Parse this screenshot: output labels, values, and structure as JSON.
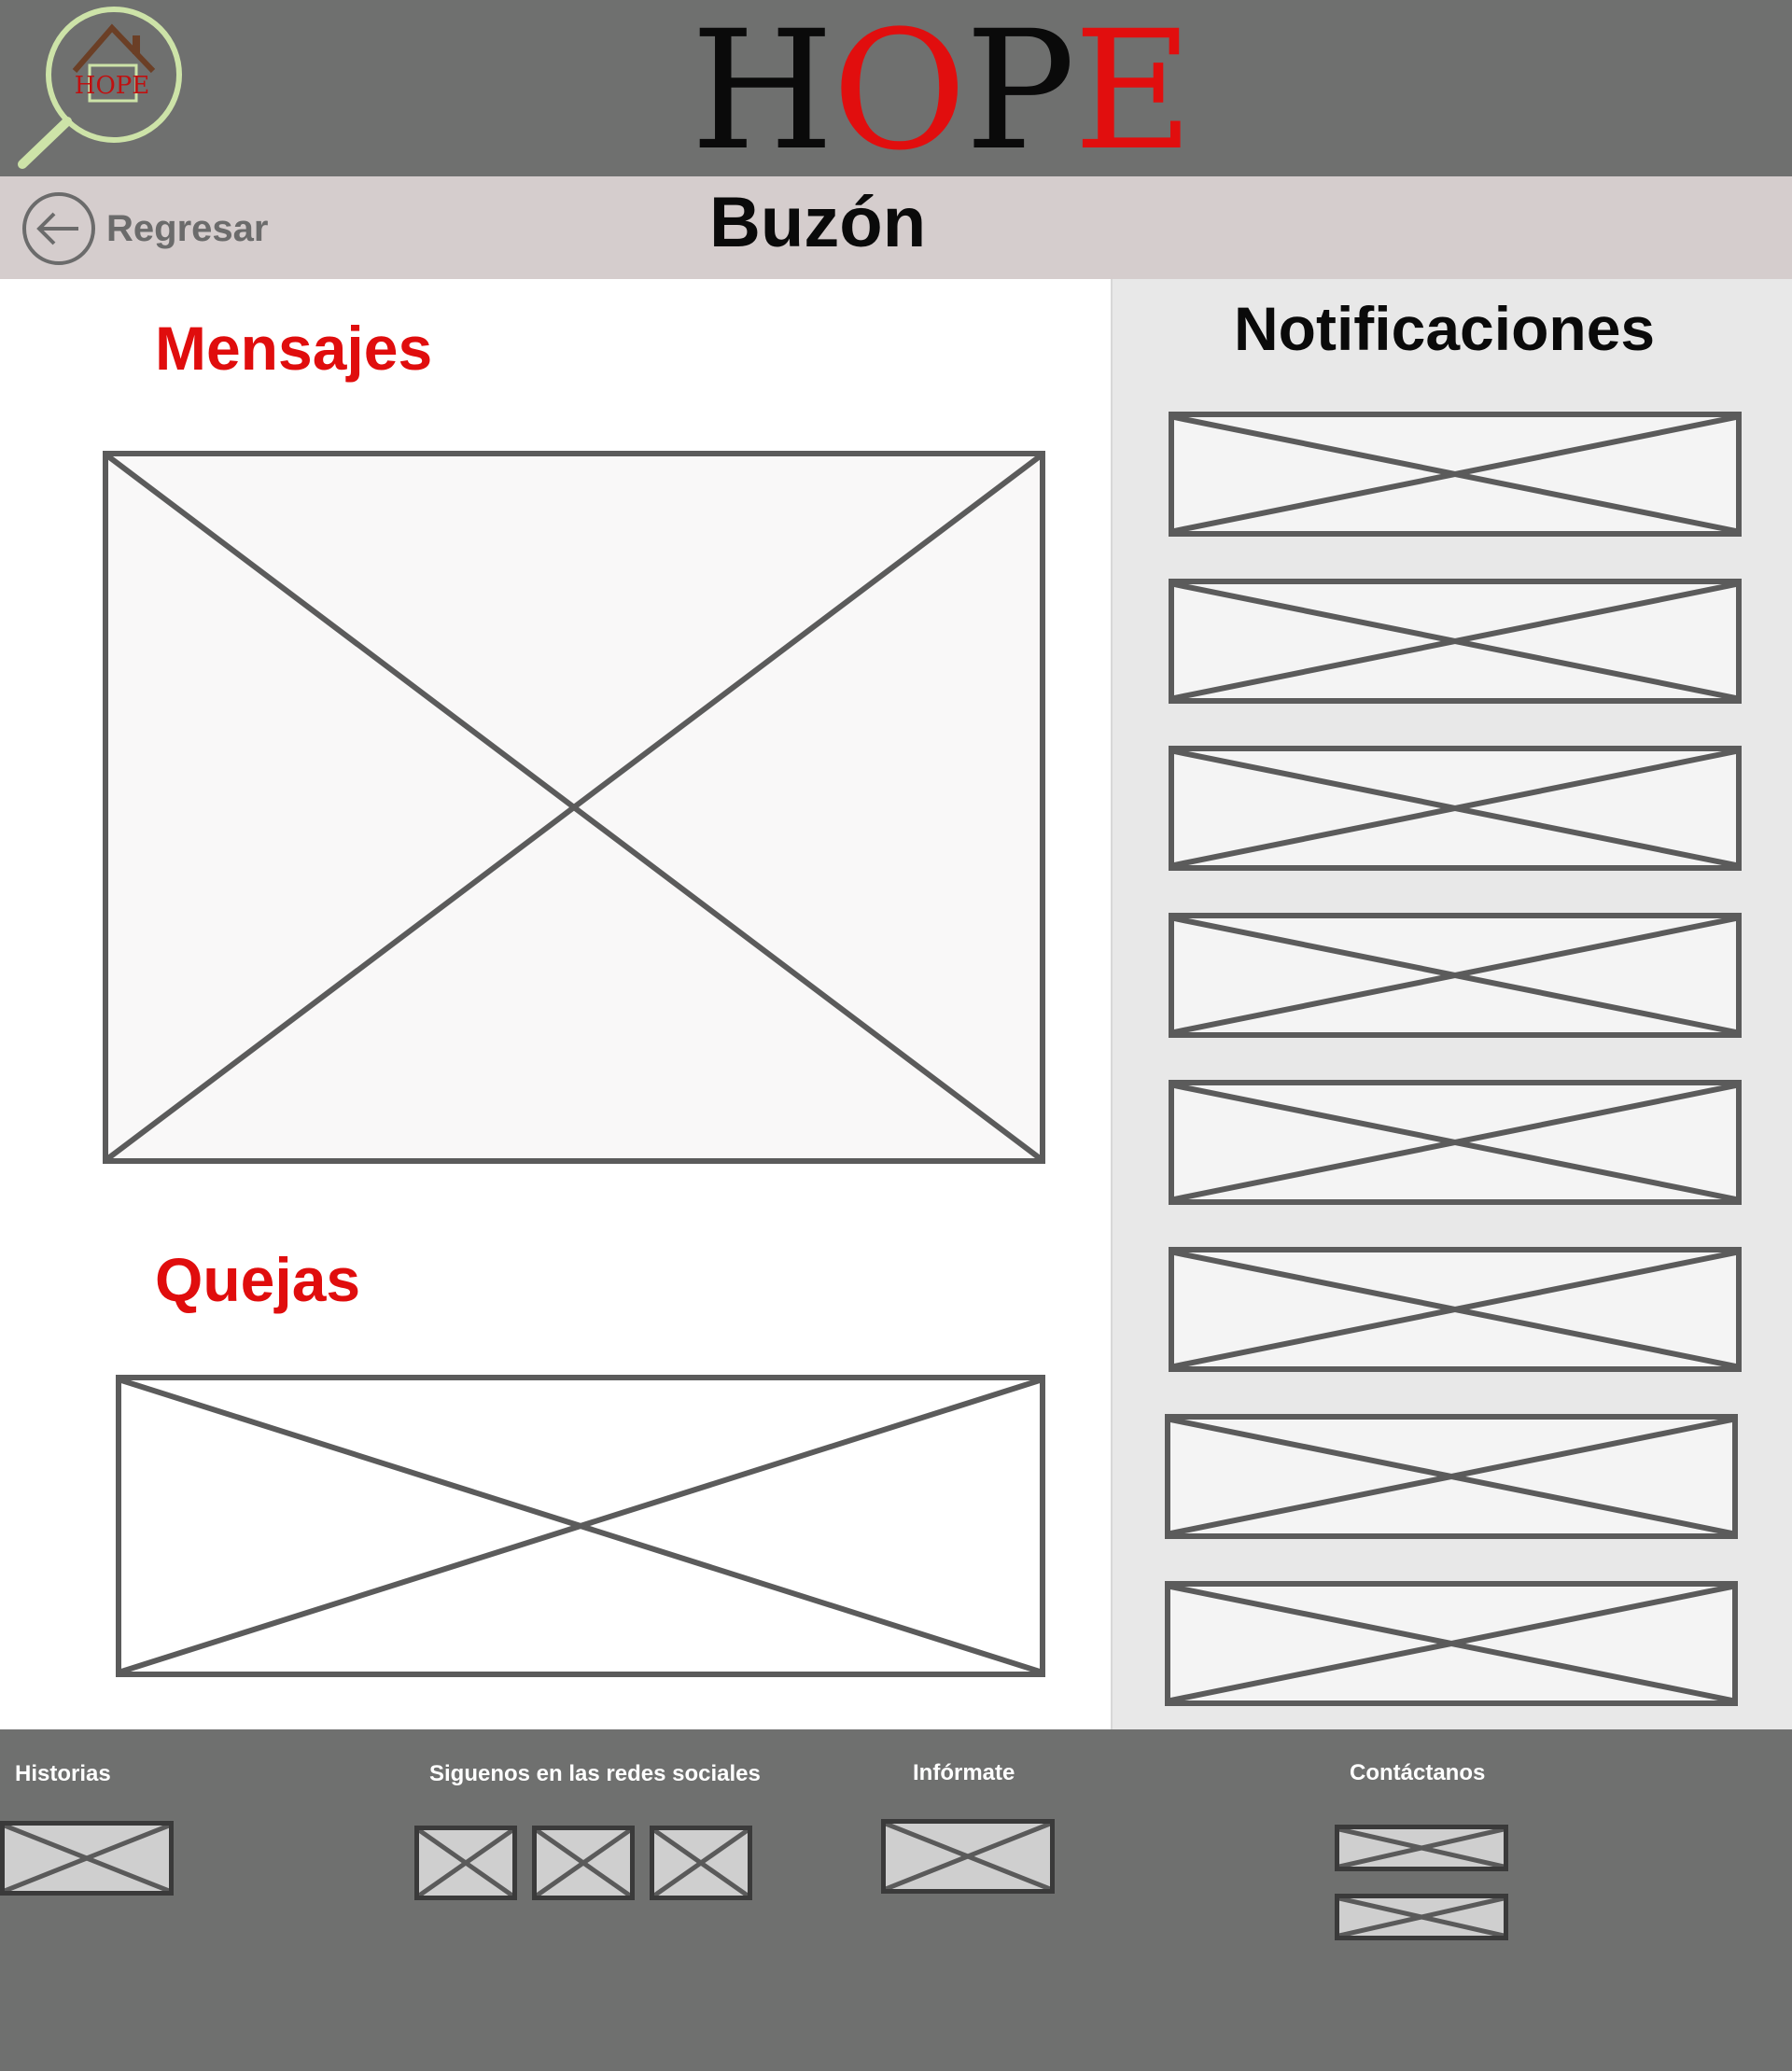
{
  "header": {
    "logo_text": "HOPE",
    "brand": {
      "part1": "H",
      "part2": "O",
      "part3": "P",
      "part4": "E"
    },
    "colors": {
      "dark": "#0a0a0a",
      "accent": "#e10e0e"
    }
  },
  "subheader": {
    "back_label": "Regresar",
    "title": "Buzón"
  },
  "main": {
    "messages_title": "Mensajes",
    "complaints_title": "Quejas"
  },
  "sidebar": {
    "title": "Notificaciones",
    "notification_count": 8
  },
  "footer": {
    "stories": "Historias",
    "social": "Siguenos en las redes sociales",
    "info": "Infórmate",
    "contact": "Contáctanos"
  }
}
